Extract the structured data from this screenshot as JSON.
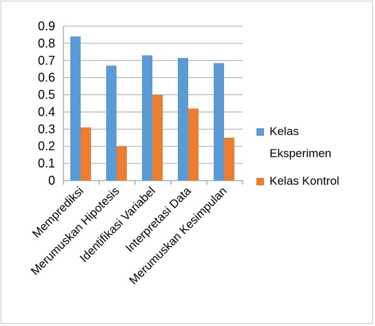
{
  "chart_data": {
    "type": "bar",
    "categories": [
      "Memprediksi",
      "Merumuskan Hipotesis",
      "Identifikasi Variabel",
      "Interpretasi Data",
      "Merumuskan Kesimpulan"
    ],
    "series": [
      {
        "name": "Kelas Eksperimen",
        "name_lines": [
          "Kelas",
          "Eksperimen"
        ],
        "color": "#5b9bd5",
        "values": [
          0.84,
          0.67,
          0.73,
          0.715,
          0.685
        ]
      },
      {
        "name": "Kelas Kontrol",
        "name_lines": [
          "Kelas Kontrol"
        ],
        "color": "#ed7d31",
        "values": [
          0.31,
          0.2,
          0.5,
          0.42,
          0.25
        ]
      }
    ],
    "ylim": [
      0,
      0.9
    ],
    "yticks": [
      "0",
      "0.1",
      "0.2",
      "0.3",
      "0.4",
      "0.5",
      "0.6",
      "0.7",
      "0.8",
      "0.9"
    ],
    "grid": true,
    "legend": "right",
    "gridline_color": "#a6a6a6",
    "axis_color": "#868686"
  }
}
